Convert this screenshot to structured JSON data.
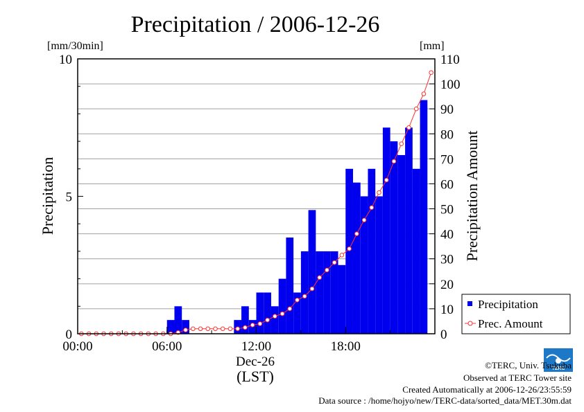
{
  "chart_data": {
    "type": "bar",
    "title": "Precipitation / 2006-12-26",
    "left_unit": "[mm/30min]",
    "right_unit": "[mm]",
    "ylabel_left": "Precipitation",
    "ylabel_right": "Precipitation Amount",
    "xlabel_date": "Dec-26",
    "xlabel_zone": "(LST)",
    "ylim_left": [
      0,
      10
    ],
    "ylim_right": [
      0,
      110
    ],
    "xlim_hours": [
      0,
      24
    ],
    "y_ticks_left": [
      0,
      5,
      10
    ],
    "y_ticks_right": [
      0,
      10,
      20,
      30,
      40,
      50,
      60,
      70,
      80,
      90,
      100,
      110
    ],
    "x_ticks": [
      {
        "hour": 0,
        "label": "00:00"
      },
      {
        "hour": 6,
        "label": "06:00"
      },
      {
        "hour": 12,
        "label": "12:00"
      },
      {
        "hour": 18,
        "label": "18:00"
      }
    ],
    "grid": true,
    "legend_position": "bottom-right",
    "series": [
      {
        "name": "Precipitation",
        "kind": "bar",
        "axis": "left",
        "color": "#0000ee",
        "bar_width_hours": 0.5,
        "x_hours": [
          0,
          0.5,
          1,
          1.5,
          2,
          2.5,
          3,
          3.5,
          4,
          4.5,
          5,
          5.5,
          6,
          6.5,
          7,
          7.5,
          8,
          8.5,
          9,
          9.5,
          10,
          10.5,
          11,
          11.5,
          12,
          12.5,
          13,
          13.5,
          14,
          14.5,
          15,
          15.5,
          16,
          16.5,
          17,
          17.5,
          18,
          18.5,
          19,
          19.5,
          20,
          20.5,
          21,
          21.5,
          22,
          22.5,
          23,
          23.5
        ],
        "values": [
          0,
          0,
          0,
          0,
          0,
          0,
          0,
          0,
          0,
          0,
          0,
          0,
          0.5,
          1,
          0.5,
          0,
          0,
          0,
          0,
          0,
          0,
          0.5,
          1,
          0.5,
          1.5,
          1.5,
          1,
          2,
          3.5,
          1.5,
          3,
          4.5,
          3,
          3,
          3,
          2.5,
          6,
          5.5,
          5,
          6,
          5,
          7.5,
          7,
          6.5,
          7.5,
          6,
          8.5,
          0
        ]
      },
      {
        "name": "Prec. Amount",
        "kind": "line",
        "axis": "right",
        "color": "#ff3030",
        "x_hours": [
          0,
          0.5,
          1,
          1.5,
          2,
          2.5,
          3,
          3.5,
          4,
          4.5,
          5,
          5.5,
          6,
          6.5,
          7,
          7.5,
          8,
          8.5,
          9,
          9.5,
          10,
          10.5,
          11,
          11.5,
          12,
          12.5,
          13,
          13.5,
          14,
          14.5,
          15,
          15.5,
          16,
          16.5,
          17,
          17.5,
          18,
          18.5,
          19,
          19.5,
          20,
          20.5,
          21,
          21.5,
          22,
          22.5,
          23,
          23.5
        ],
        "values": [
          0,
          0,
          0,
          0,
          0,
          0,
          0,
          0,
          0,
          0,
          0,
          0,
          0,
          0.5,
          1.5,
          2,
          2,
          2,
          2,
          2,
          2,
          2,
          2.5,
          3.5,
          4,
          5.5,
          7,
          8,
          10,
          13.5,
          15,
          18,
          22.5,
          25.5,
          28.5,
          31.5,
          34,
          40,
          45.5,
          50.5,
          56.5,
          61.5,
          69,
          76,
          82.5,
          90,
          96,
          104.5
        ]
      }
    ]
  },
  "footer": {
    "copyright": "©TERC, Univ. Tsukuba",
    "site": "Observed at TERC Tower site",
    "created": "Created Automatically at 2006-12-26/23:55:59",
    "source": "Data source : /home/hojyo/new/TERC-data/sorted_data/MET.30m.dat",
    "logo_text": "TERC"
  }
}
